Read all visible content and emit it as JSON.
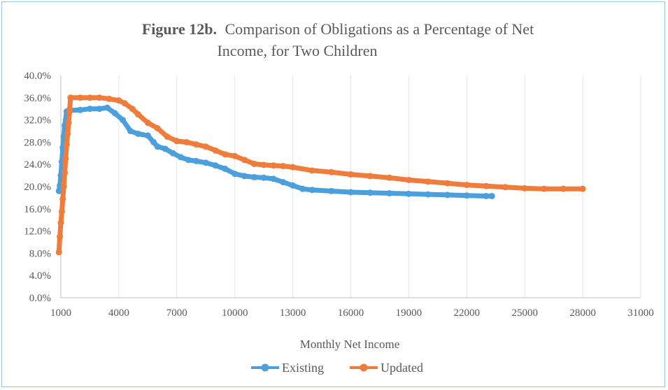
{
  "chart_data": {
    "type": "line",
    "title_bold": "Figure 12b.",
    "title_line1": "Comparison of Obligations as a Percentage of Net",
    "title_line2": "Income, for Two Children",
    "xlabel": "Monthly Net Income",
    "ylabel": "",
    "xlim": [
      1000,
      31000
    ],
    "ylim": [
      0,
      40
    ],
    "x_ticks": [
      1000,
      4000,
      7000,
      10000,
      13000,
      16000,
      19000,
      22000,
      25000,
      28000,
      31000
    ],
    "x_tick_labels": [
      "1000",
      "4000",
      "7000",
      "10000",
      "13000",
      "16000",
      "19000",
      "22000",
      "25000",
      "28000",
      "31000"
    ],
    "y_ticks": [
      0,
      4,
      8,
      12,
      16,
      20,
      24,
      28,
      32,
      36,
      40
    ],
    "y_tick_labels": [
      "0.0%",
      "4.0%",
      "8.0%",
      "12.0%",
      "16.0%",
      "20.0%",
      "24.0%",
      "28.0%",
      "32.0%",
      "36.0%",
      "40.0%"
    ],
    "grid": "vertical",
    "legend_position": "bottom-center",
    "series": [
      {
        "name": "Existing",
        "color": "#4a9fdc",
        "x": [
          900,
          950,
          1000,
          1050,
          1100,
          1150,
          1200,
          1300,
          1400,
          2000,
          2500,
          3000,
          3400,
          3800,
          4200,
          4600,
          5000,
          5500,
          5800,
          6000,
          6400,
          6800,
          7200,
          7600,
          8000,
          8500,
          9000,
          9500,
          10000,
          10500,
          11000,
          11500,
          12000,
          12500,
          13000,
          13500,
          14000,
          15000,
          16000,
          17000,
          18000,
          19000,
          20000,
          21000,
          22000,
          23000,
          23300
        ],
        "y": [
          19.2,
          20.2,
          22,
          24.5,
          27,
          29,
          31,
          33.5,
          33.7,
          33.8,
          34,
          34,
          34.2,
          33.2,
          32,
          30,
          29.5,
          29.2,
          28,
          27.2,
          26.8,
          26,
          25.3,
          24.8,
          24.6,
          24.3,
          23.8,
          23.2,
          22.3,
          21.9,
          21.7,
          21.6,
          21.4,
          20.8,
          20.2,
          19.6,
          19.4,
          19.2,
          19.0,
          18.9,
          18.8,
          18.7,
          18.6,
          18.5,
          18.4,
          18.3,
          18.3
        ]
      },
      {
        "name": "Updated",
        "color": "#ef7c3a",
        "x": [
          900,
          950,
          1000,
          1050,
          1100,
          1150,
          1200,
          1250,
          1300,
          1350,
          1400,
          1450,
          1500,
          2000,
          2500,
          3000,
          3500,
          4000,
          4300,
          4700,
          5000,
          5500,
          6000,
          6500,
          7000,
          7500,
          8000,
          8500,
          9000,
          9500,
          10000,
          10500,
          11000,
          11500,
          12000,
          12500,
          13000,
          14000,
          15000,
          16000,
          17000,
          18000,
          19000,
          20000,
          21000,
          22000,
          23000,
          24000,
          25000,
          26000,
          27000,
          28000
        ],
        "y": [
          8.2,
          11,
          13.5,
          15.5,
          17.8,
          20,
          22.5,
          25,
          27.5,
          29.5,
          31.5,
          33.5,
          36,
          36,
          36,
          36,
          35.8,
          35.5,
          35,
          34,
          33,
          31.5,
          30.5,
          29,
          28.2,
          28,
          27.6,
          27.2,
          26.5,
          25.8,
          25.5,
          24.8,
          24.1,
          23.9,
          23.8,
          23.7,
          23.5,
          22.9,
          22.6,
          22.2,
          21.9,
          21.6,
          21.2,
          20.9,
          20.6,
          20.3,
          20.1,
          19.9,
          19.7,
          19.6,
          19.6,
          19.6
        ]
      }
    ]
  }
}
